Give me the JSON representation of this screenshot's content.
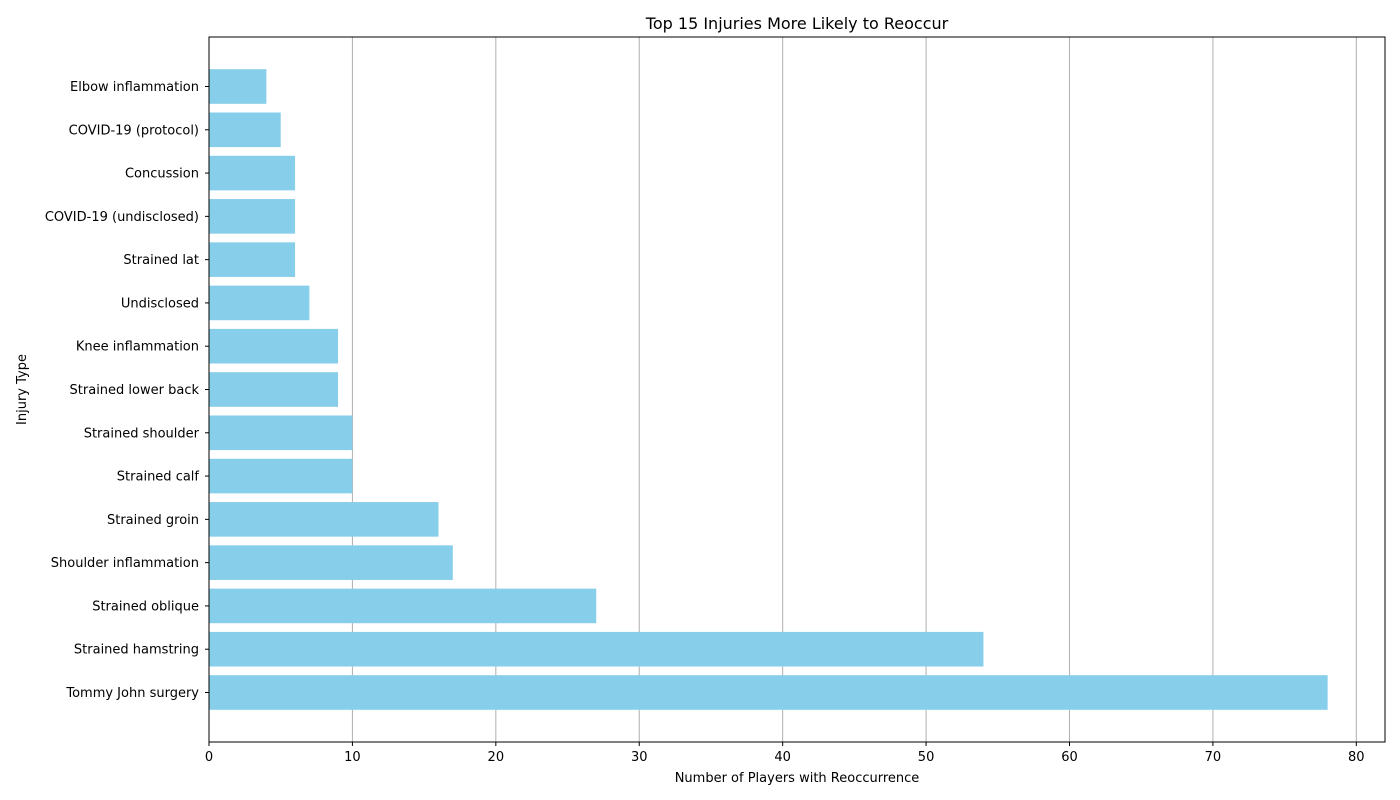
{
  "chart_data": {
    "type": "bar",
    "orientation": "horizontal",
    "title": "Top 15 Injuries More Likely to Reoccur",
    "xlabel": "Number of Players with Reoccurrence",
    "ylabel": "Injury Type",
    "categories": [
      "Tommy John surgery",
      "Strained hamstring",
      "Strained oblique",
      "Shoulder inflammation",
      "Strained groin",
      "Strained calf",
      "Strained shoulder",
      "Strained lower back",
      "Knee inflammation",
      "Undisclosed",
      "Strained lat",
      "COVID-19 (undisclosed)",
      "Concussion",
      "COVID-19 (protocol)",
      "Elbow inflammation"
    ],
    "values": [
      78,
      54,
      27,
      17,
      16,
      10,
      10,
      9,
      9,
      7,
      6,
      6,
      6,
      5,
      4
    ],
    "xlim": [
      0,
      82
    ],
    "xticks": [
      0,
      10,
      20,
      30,
      40,
      50,
      60,
      70,
      80
    ],
    "grid": "x",
    "bar_color": "#87CEEB",
    "grid_color": "#b0b0b0"
  }
}
